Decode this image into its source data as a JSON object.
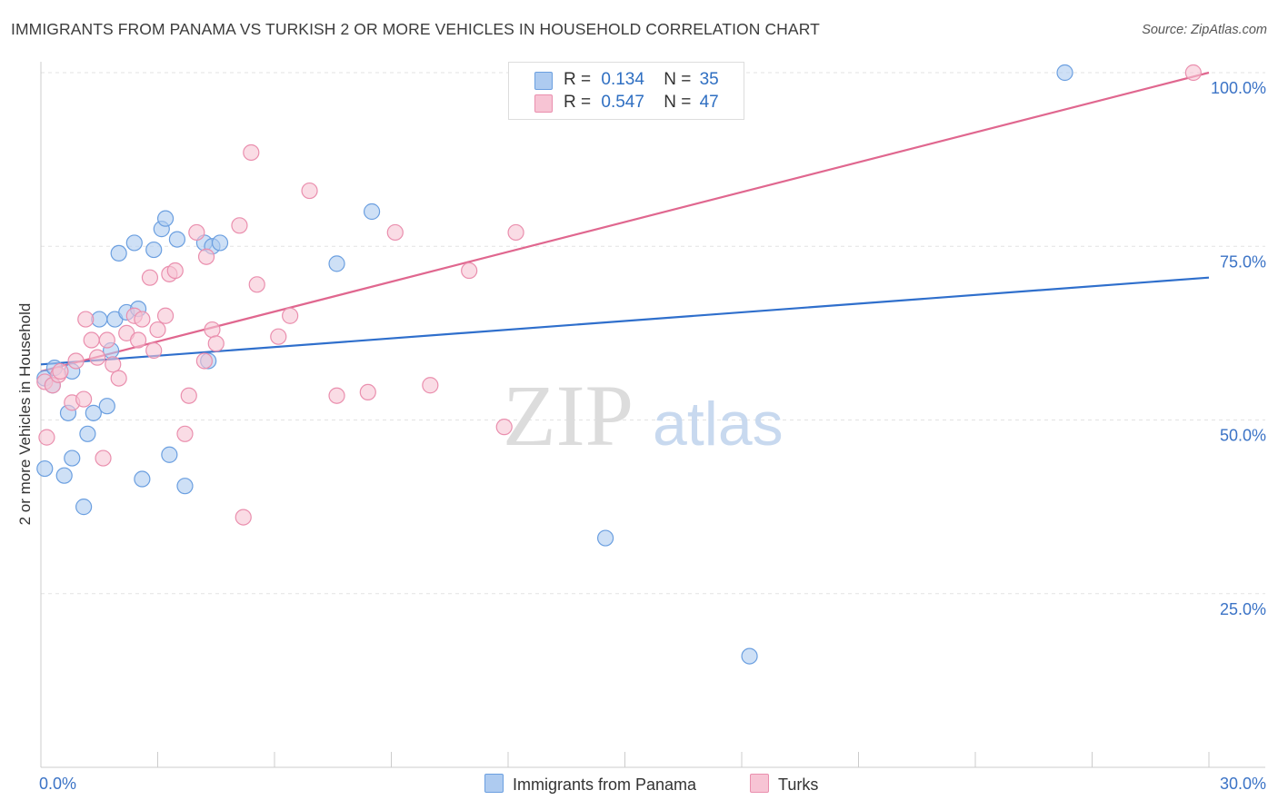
{
  "header": {
    "title": "IMMIGRANTS FROM PANAMA VS TURKISH 2 OR MORE VEHICLES IN HOUSEHOLD CORRELATION CHART",
    "source": "Source: ZipAtlas.com"
  },
  "watermark": {
    "zip": "ZIP",
    "atlas": "atlas"
  },
  "legend_stats": [
    {
      "r_label": "R =",
      "r_value": "0.134",
      "n_label": "N =",
      "n_value": "35",
      "color": "#aecbf0",
      "stroke": "#6b9fe0"
    },
    {
      "r_label": "R =",
      "r_value": "0.547",
      "n_label": "N =",
      "n_value": "47",
      "color": "#f7c4d4",
      "stroke": "#ea8fae"
    }
  ],
  "chart_data": {
    "type": "scatter",
    "title": "IMMIGRANTS FROM PANAMA VS TURKISH 2 OR MORE VEHICLES IN HOUSEHOLD CORRELATION CHART",
    "xlabel": "",
    "ylabel": "2 or more Vehicles in Household",
    "xlim": [
      0,
      30
    ],
    "ylim": [
      0,
      100
    ],
    "x_tick_labels": [
      "0.0%",
      "30.0%"
    ],
    "y_ticks": [
      25,
      50,
      75,
      100
    ],
    "y_tick_labels": [
      "25.0%",
      "50.0%",
      "75.0%",
      "100.0%"
    ],
    "grid": true,
    "series": [
      {
        "name": "Immigrants from Panama",
        "color": "#aecbf0",
        "stroke": "#6b9fe0",
        "line_color": "#2f6fcc",
        "trend": {
          "x": [
            0,
            30
          ],
          "y": [
            58.0,
            70.5
          ]
        },
        "points": [
          [
            0.1,
            56.0
          ],
          [
            0.1,
            43.0
          ],
          [
            0.3,
            55.0
          ],
          [
            0.35,
            57.5
          ],
          [
            0.6,
            42.0
          ],
          [
            0.7,
            51.0
          ],
          [
            0.8,
            57.0
          ],
          [
            0.8,
            44.5
          ],
          [
            1.1,
            37.5
          ],
          [
            1.2,
            48.0
          ],
          [
            1.35,
            51.0
          ],
          [
            1.5,
            64.5
          ],
          [
            1.7,
            52.0
          ],
          [
            1.8,
            60.0
          ],
          [
            1.9,
            64.5
          ],
          [
            2.0,
            74.0
          ],
          [
            2.2,
            65.5
          ],
          [
            2.4,
            75.5
          ],
          [
            2.5,
            66.0
          ],
          [
            2.6,
            41.5
          ],
          [
            2.9,
            74.5
          ],
          [
            3.1,
            77.5
          ],
          [
            3.2,
            79.0
          ],
          [
            3.3,
            45.0
          ],
          [
            3.5,
            76.0
          ],
          [
            3.7,
            40.5
          ],
          [
            4.2,
            75.5
          ],
          [
            4.3,
            58.5
          ],
          [
            4.4,
            75.0
          ],
          [
            4.6,
            75.5
          ],
          [
            7.6,
            72.5
          ],
          [
            8.5,
            80.0
          ],
          [
            14.5,
            33.0
          ],
          [
            18.2,
            16.0
          ],
          [
            26.3,
            100.0
          ]
        ]
      },
      {
        "name": "Turks",
        "color": "#f7c4d4",
        "stroke": "#ea8fae",
        "line_color": "#e0678f",
        "trend": {
          "x": [
            0,
            30
          ],
          "y": [
            57.0,
            100.0
          ]
        },
        "points": [
          [
            0.1,
            55.5
          ],
          [
            0.15,
            47.5
          ],
          [
            0.3,
            55.0
          ],
          [
            0.45,
            56.5
          ],
          [
            0.5,
            57.0
          ],
          [
            0.8,
            52.5
          ],
          [
            0.9,
            58.5
          ],
          [
            1.1,
            53.0
          ],
          [
            1.15,
            64.5
          ],
          [
            1.3,
            61.5
          ],
          [
            1.45,
            59.0
          ],
          [
            1.6,
            44.5
          ],
          [
            1.7,
            61.5
          ],
          [
            1.85,
            58.0
          ],
          [
            2.0,
            56.0
          ],
          [
            2.2,
            62.5
          ],
          [
            2.4,
            65.0
          ],
          [
            2.5,
            61.5
          ],
          [
            2.6,
            64.5
          ],
          [
            2.8,
            70.5
          ],
          [
            2.9,
            60.0
          ],
          [
            3.0,
            63.0
          ],
          [
            3.2,
            65.0
          ],
          [
            3.3,
            71.0
          ],
          [
            3.45,
            71.5
          ],
          [
            3.7,
            48.0
          ],
          [
            3.8,
            53.5
          ],
          [
            4.0,
            77.0
          ],
          [
            4.2,
            58.5
          ],
          [
            4.25,
            73.5
          ],
          [
            4.4,
            63.0
          ],
          [
            4.5,
            61.0
          ],
          [
            5.1,
            78.0
          ],
          [
            5.2,
            36.0
          ],
          [
            5.4,
            88.5
          ],
          [
            5.55,
            69.5
          ],
          [
            6.1,
            62.0
          ],
          [
            6.4,
            65.0
          ],
          [
            6.9,
            83.0
          ],
          [
            7.6,
            53.5
          ],
          [
            8.4,
            54.0
          ],
          [
            9.1,
            77.0
          ],
          [
            10.0,
            55.0
          ],
          [
            11.0,
            71.5
          ],
          [
            11.9,
            49.0
          ],
          [
            12.2,
            77.0
          ],
          [
            29.6,
            100.0
          ]
        ]
      }
    ]
  }
}
